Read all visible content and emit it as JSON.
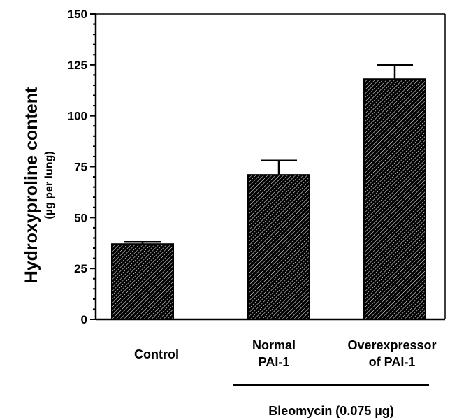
{
  "chart_data": {
    "type": "bar",
    "categories": [
      [
        "Control"
      ],
      [
        "Normal",
        "PAI-1"
      ],
      [
        "Overexpressor",
        "of PAI-1"
      ]
    ],
    "values": [
      37,
      71,
      118
    ],
    "error_upper": [
      38,
      78,
      125
    ],
    "ylabel": "Hydroxyproline content",
    "ylabel_sub": "(µg per lung)",
    "ylim": [
      0,
      150
    ],
    "yticks": [
      "0",
      "25",
      "50",
      "75",
      "100",
      "125",
      "150"
    ],
    "group_label": "Bleomycin (0.075 µg)",
    "bar_fill": "hatched",
    "grid": false
  },
  "colors": {
    "bar_fill_dark": "#000000",
    "bar_hatch": "#ffffff",
    "axis": "#000000"
  }
}
